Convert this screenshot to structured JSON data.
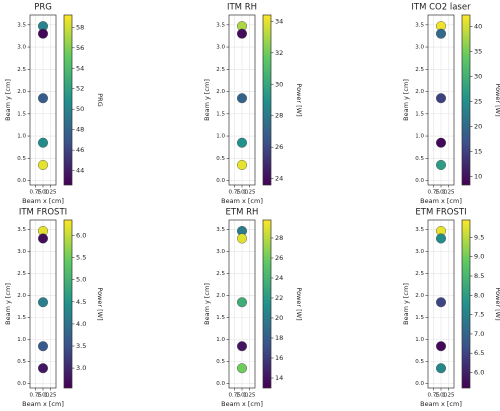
{
  "chart_data": [
    {
      "type": "scatter",
      "title": "PRG",
      "x_label": "Beam x [cm]",
      "y_label": "Beam y [cm]",
      "colorbar_label": "PRG",
      "colormap": "viridis",
      "grid": true,
      "x": [
        1,
        1,
        1,
        1,
        1
      ],
      "y": [
        3.47,
        3.3,
        1.85,
        0.85,
        0.35
      ],
      "c": [
        50,
        43,
        47.5,
        50.5,
        58.5
      ],
      "xlim": [
        0.56,
        1.44
      ],
      "ylim": [
        -0.1,
        3.72
      ],
      "xticks": [
        0.75,
        {
          "value": 1,
          "label": "1.00"
        },
        1.25
      ],
      "yticks": [
        {
          "value": 0,
          "label": "0.0"
        },
        0.5,
        {
          "value": 1,
          "label": "1.0"
        },
        1.5,
        {
          "value": 2,
          "label": "2.0"
        },
        2.5,
        {
          "value": 3,
          "label": "3.0"
        },
        3.5
      ],
      "clim": [
        42.6,
        59.2
      ],
      "cticks": [
        44,
        46,
        48,
        50,
        52,
        54,
        56,
        58
      ]
    },
    {
      "type": "scatter",
      "title": "ITM RH",
      "x_label": "Beam x [cm]",
      "y_label": "Beam y [cm]",
      "colorbar_label": "Power [W]",
      "colormap": "viridis",
      "grid": true,
      "x": [
        1,
        1,
        1,
        1,
        1
      ],
      "y": [
        3.47,
        3.3,
        1.85,
        0.85,
        0.35
      ],
      "c": [
        33,
        24,
        27,
        29,
        34
      ],
      "xlim": [
        0.56,
        1.44
      ],
      "ylim": [
        -0.1,
        3.72
      ],
      "xticks": [
        0.75,
        {
          "value": 1,
          "label": "1.00"
        },
        1.25
      ],
      "yticks": [
        {
          "value": 0,
          "label": "0.0"
        },
        0.5,
        {
          "value": 1,
          "label": "1.0"
        },
        1.5,
        {
          "value": 2,
          "label": "2.0"
        },
        2.5,
        {
          "value": 3,
          "label": "3.0"
        },
        3.5
      ],
      "clim": [
        23.6,
        34.4
      ],
      "cticks": [
        24,
        26,
        28,
        30,
        32,
        34
      ]
    },
    {
      "type": "scatter",
      "title": "ITM CO2 laser",
      "x_label": "Beam x [cm]",
      "y_label": "Beam y [cm]",
      "colorbar_label": "Power [W]",
      "colormap": "viridis",
      "grid": true,
      "x": [
        1,
        1,
        1,
        1,
        1
      ],
      "y": [
        3.47,
        3.3,
        1.85,
        0.85,
        0.35
      ],
      "c": [
        41.5,
        20,
        15,
        9,
        27
      ],
      "xlim": [
        0.56,
        1.44
      ],
      "ylim": [
        -0.1,
        3.72
      ],
      "xticks": [
        0.75,
        {
          "value": 1,
          "label": "1.00"
        },
        1.25
      ],
      "yticks": [
        {
          "value": 0,
          "label": "0.0"
        },
        0.5,
        {
          "value": 1,
          "label": "1.0"
        },
        1.5,
        {
          "value": 2,
          "label": "2.0"
        },
        2.5,
        {
          "value": 3,
          "label": "3.0"
        },
        3.5
      ],
      "clim": [
        8.3,
        42.3
      ],
      "cticks": [
        10,
        15,
        20,
        25,
        30,
        35,
        40
      ]
    },
    {
      "type": "scatter",
      "title": "ITM FROSTI",
      "x_label": "Beam x [cm]",
      "y_label": "Beam y [cm]",
      "colorbar_label": "Power [W]",
      "colormap": "viridis",
      "grid": true,
      "x": [
        1,
        1,
        1,
        1,
        1
      ],
      "y": [
        3.47,
        3.3,
        1.85,
        0.85,
        0.35
      ],
      "c": [
        6.2,
        2.7,
        4.2,
        3.6,
        2.8
      ],
      "xlim": [
        0.56,
        1.44
      ],
      "ylim": [
        -0.1,
        3.72
      ],
      "xticks": [
        0.75,
        {
          "value": 1,
          "label": "1.00"
        },
        1.25
      ],
      "yticks": [
        {
          "value": 0,
          "label": "0.0"
        },
        0.5,
        {
          "value": 1,
          "label": "1.0"
        },
        1.5,
        {
          "value": 2,
          "label": "2.0"
        },
        2.5,
        {
          "value": 3,
          "label": "3.0"
        },
        3.5
      ],
      "clim": [
        2.55,
        6.35
      ],
      "cticks": [
        {
          "value": 3,
          "label": "3.0"
        },
        3.5,
        {
          "value": 4,
          "label": "4.0"
        },
        4.5,
        {
          "value": 5,
          "label": "5.0"
        },
        5.5,
        {
          "value": 6,
          "label": "6.0"
        }
      ]
    },
    {
      "type": "scatter",
      "title": "ETM RH",
      "x_label": "Beam x [cm]",
      "y_label": "Beam y [cm]",
      "colorbar_label": "Power [W]",
      "colormap": "viridis",
      "grid": true,
      "x": [
        1,
        1,
        1,
        1,
        1
      ],
      "y": [
        3.47,
        3.3,
        1.85,
        0.85,
        0.35
      ],
      "c": [
        20,
        29,
        23.5,
        14,
        26
      ],
      "xlim": [
        0.56,
        1.44
      ],
      "ylim": [
        -0.1,
        3.72
      ],
      "xticks": [
        0.75,
        {
          "value": 1,
          "label": "1.00"
        },
        1.25
      ],
      "yticks": [
        {
          "value": 0,
          "label": "0.0"
        },
        0.5,
        {
          "value": 1,
          "label": "1.0"
        },
        1.5,
        {
          "value": 2,
          "label": "2.0"
        },
        2.5,
        {
          "value": 3,
          "label": "3.0"
        },
        3.5
      ],
      "clim": [
        13,
        29.8
      ],
      "cticks": [
        14,
        16,
        18,
        20,
        22,
        24,
        26,
        28
      ]
    },
    {
      "type": "scatter",
      "title": "ETM FROSTI",
      "x_label": "Beam x [cm]",
      "y_label": "Beam y [cm]",
      "colorbar_label": "Power [W]",
      "colormap": "viridis",
      "grid": true,
      "x": [
        1,
        1,
        1,
        1,
        1
      ],
      "y": [
        3.47,
        3.3,
        1.85,
        0.85,
        0.35
      ],
      "c": [
        9.8,
        7.7,
        6.5,
        5.7,
        7.6
      ],
      "xlim": [
        0.56,
        1.44
      ],
      "ylim": [
        -0.1,
        3.72
      ],
      "xticks": [
        0.75,
        {
          "value": 1,
          "label": "1.00"
        },
        1.25
      ],
      "yticks": [
        {
          "value": 0,
          "label": "0.0"
        },
        0.5,
        {
          "value": 1,
          "label": "1.0"
        },
        1.5,
        {
          "value": 2,
          "label": "2.0"
        },
        2.5,
        {
          "value": 3,
          "label": "3.0"
        },
        3.5
      ],
      "clim": [
        5.6,
        9.95
      ],
      "cticks": [
        {
          "value": 6,
          "label": "6.0"
        },
        6.5,
        {
          "value": 7,
          "label": "7.0"
        },
        7.5,
        {
          "value": 8,
          "label": "8.0"
        },
        8.5,
        {
          "value": 9,
          "label": "9.0"
        },
        9.5
      ]
    }
  ]
}
